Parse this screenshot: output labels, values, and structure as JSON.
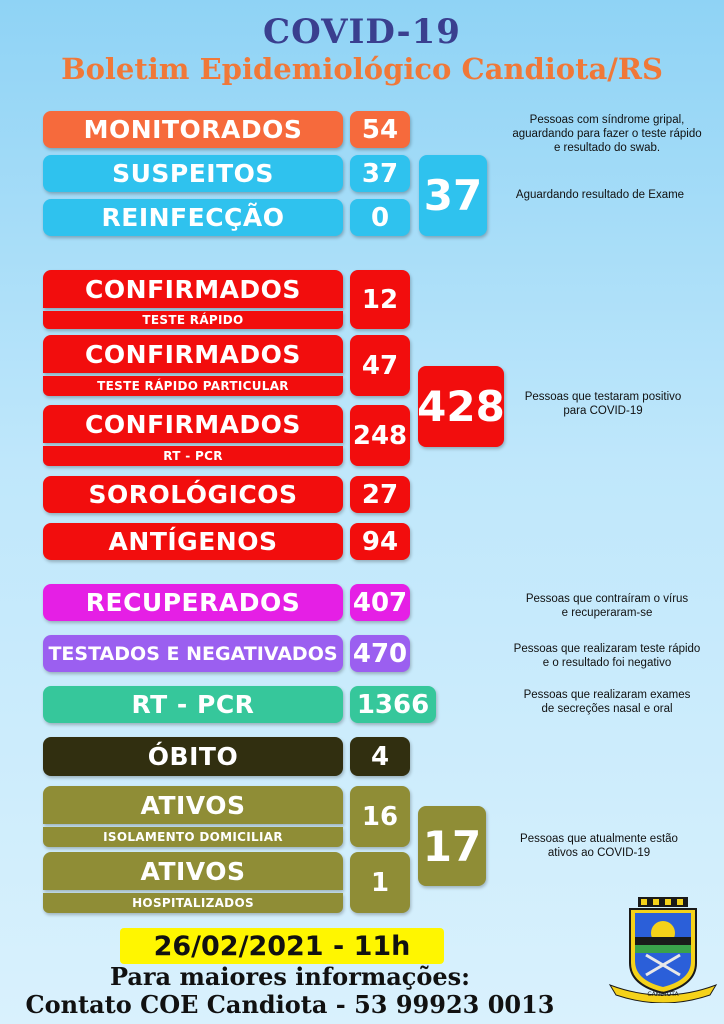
{
  "header": {
    "title": "COVID-19",
    "subtitle": "Boletim Epidemiológico Candiota/RS"
  },
  "monitorados": {
    "label": "MONITORADOS",
    "value": "54",
    "note_lines": [
      "Pessoas com síndrome gripal,",
      "aguardando para fazer o teste rápido",
      "e resultado do swab."
    ]
  },
  "suspeitos": {
    "label": "SUSPEITOS",
    "value": "37"
  },
  "reinfeccao": {
    "label": "REINFECÇÃO",
    "value": "0"
  },
  "suspeitos_total": {
    "value": "37",
    "note": "Aguardando resultado de Exame"
  },
  "confirmados_teste_rapido": {
    "label": "CONFIRMADOS",
    "sub": "TESTE RÁPIDO",
    "value": "12"
  },
  "confirmados_particular": {
    "label": "CONFIRMADOS",
    "sub": "TESTE RÁPIDO PARTICULAR",
    "value": "47"
  },
  "confirmados_rtpcr": {
    "label": "CONFIRMADOS",
    "sub": "RT - PCR",
    "value": "248"
  },
  "sorologicos": {
    "label": "SOROLÓGICOS",
    "value": "27"
  },
  "antigenos": {
    "label": "ANTÍGENOS",
    "value": "94"
  },
  "confirmados_total": {
    "value": "428",
    "note_lines": [
      "Pessoas que testaram positivo",
      "para COVID-19"
    ]
  },
  "recuperados": {
    "label": "RECUPERADOS",
    "value": "407",
    "note_lines": [
      "Pessoas que contraíram o vírus",
      "e recuperaram-se"
    ]
  },
  "testados_negativados": {
    "label": "TESTADOS E NEGATIVADOS",
    "value": "470",
    "note_lines": [
      "Pessoas que realizaram teste rápido",
      "e o resultado foi negativo"
    ]
  },
  "rt_pcr": {
    "label": "RT - PCR",
    "value": "1366",
    "note_lines": [
      "Pessoas que realizaram exames",
      "de secreções nasal e oral"
    ]
  },
  "obito": {
    "label": "ÓBITO",
    "value": "4"
  },
  "ativos_domiciliar": {
    "label": "ATIVOS",
    "sub": "ISOLAMENTO DOMICILIAR",
    "value": "16"
  },
  "ativos_hospitalizados": {
    "label": "ATIVOS",
    "sub": "HOSPITALIZADOS",
    "value": "1"
  },
  "ativos_total": {
    "value": "17",
    "note_lines": [
      "Pessoas que atualmente estão",
      "ativos ao COVID-19"
    ]
  },
  "footer": {
    "date": "26/02/2021 - 11h",
    "info_line1": "Para maiores informações:",
    "info_line2": "Contato COE Candiota - 53 99923 0013"
  },
  "crest": {
    "icon": "municipal-coat-of-arms-icon",
    "ribbon_text": "CANDIOTA"
  },
  "colors": {
    "monitorados": "#f66a3c",
    "suspeitos": "#2fc2ee",
    "confirmados": "#f20d0d",
    "recuperados": "#e51fe5",
    "negativados": "#9b5ff0",
    "rtpcr": "#36c79b",
    "obito": "#312f10",
    "ativos": "#8f8d36",
    "date_bg": "#fff600"
  }
}
